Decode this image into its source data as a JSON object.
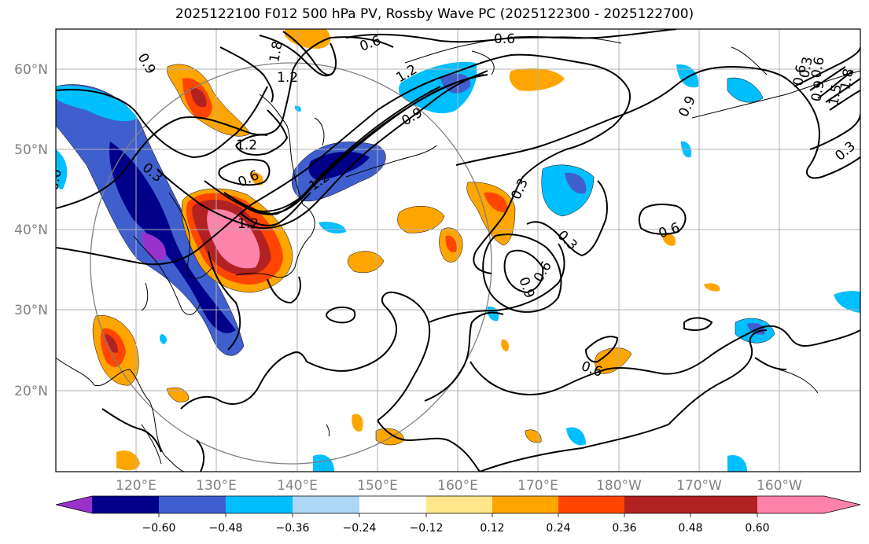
{
  "title": "2025122100 F012 500 hPa PV, Rossby Wave PC (2025122300 - 2025122700)",
  "lat_labels": [
    "60°N",
    "50°N",
    "40°N",
    "30°N",
    "20°N"
  ],
  "lon_labels": [
    "120°E",
    "130°E",
    "140°E",
    "150°E",
    "160°E",
    "170°E",
    "180°W",
    "170°W",
    "160°W"
  ],
  "colorbar": {
    "ticks": [
      "−0.60",
      "−0.48",
      "−0.36",
      "−0.24",
      "−0.12",
      "0.12",
      "0.24",
      "0.36",
      "0.48",
      "0.60"
    ],
    "colors": [
      "#9932cc",
      "#00008b",
      "#3f5fcf",
      "#00bfff",
      "#add8f5",
      "#ffffff",
      "#ffe68a",
      "#ffa500",
      "#ff4500",
      "#b22222",
      "#ff82ab"
    ]
  },
  "contour_labels": [
    "0.6",
    "0.6",
    "0.9",
    "1.8",
    "1.2",
    "1.2",
    "1.2",
    "0.9",
    "1.2",
    "0.6",
    "0.3",
    "0.6",
    "1.2",
    "0.6",
    "0.9",
    "0.3",
    "0.3",
    "0.6",
    "0.9",
    "0.6",
    "0.6",
    "0.3",
    "0.3",
    "0.6",
    "0.9",
    "1.8",
    "1.5"
  ]
}
